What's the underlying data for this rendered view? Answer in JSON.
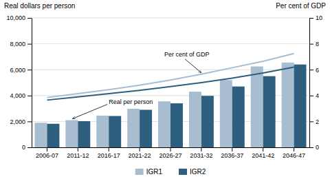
{
  "chart_data": {
    "type": "bar",
    "categories": [
      "2006-07",
      "2011-12",
      "2016-17",
      "2021-22",
      "2026-27",
      "2031-32",
      "2036-37",
      "2041-42",
      "2046-47"
    ],
    "series": [
      {
        "name": "IGR1",
        "type": "bar",
        "color": "#a8bdd0",
        "values": [
          1900,
          2100,
          2450,
          2980,
          3550,
          4300,
          5200,
          6250,
          6550
        ]
      },
      {
        "name": "IGR2",
        "type": "bar",
        "color": "#2e5f7e",
        "values": [
          1820,
          2020,
          2420,
          2900,
          3400,
          3980,
          4700,
          5500,
          6400
        ]
      },
      {
        "type": "line",
        "axis": "y2",
        "color": "#a8bdd0",
        "values": [
          3.85,
          4.15,
          4.45,
          4.8,
          5.2,
          5.65,
          6.15,
          6.65,
          7.25
        ]
      },
      {
        "type": "line",
        "axis": "y2",
        "color": "#2e5f7e",
        "values": [
          3.65,
          3.9,
          4.15,
          4.4,
          4.7,
          5.0,
          5.35,
          5.75,
          6.2
        ]
      }
    ],
    "ylabel": "Real dollars per person",
    "y2label": "Per cent of GDP",
    "annotations": [
      "Per cent of GDP",
      "Real per person"
    ],
    "ylim": [
      0,
      10000
    ],
    "yticks": [
      0,
      {
        "value": 2000,
        "label": "2,000"
      },
      {
        "value": 4000,
        "label": "4,000"
      },
      {
        "value": 6000,
        "label": "6,000"
      },
      {
        "value": 8000,
        "label": "8,000"
      },
      {
        "value": 10000,
        "label": "10,000"
      }
    ],
    "y2lim": [
      0,
      10
    ],
    "y2ticks": [
      0,
      2,
      4,
      6,
      8,
      10
    ],
    "grid": true,
    "legend": "bottom"
  }
}
